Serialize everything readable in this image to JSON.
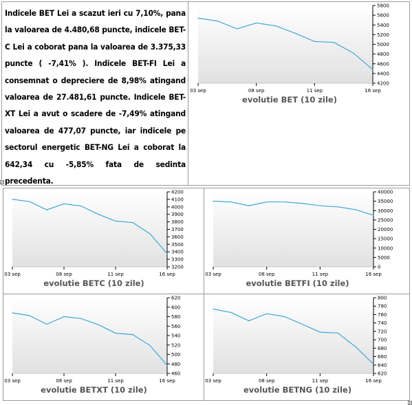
{
  "article": {
    "text": "Indicele BET Lei a scazut ieri cu 7,10%, pana la valoarea de 4.480,68 puncte, indicele BET-C Lei a coborat pana la valoarea de 3.375,33 puncte ( -7,41% ). Indicele BET-FI Lei a consemnat o depreciere de 8,98% atingand valoarea de 27.481,61 puncte. Indicele BET-XT Lei a avut o scadere de -7,49% atingand valoarea de 477,07 puncte, iar indicele pe sectorul energetic BET-NG Lei a coborat la 642,34 cu -5,85% fata de sedinta precedenta."
  },
  "colors": {
    "line": "#3fa6d8",
    "plot_top": "#ffffff",
    "plot_bottom": "#e1e1e1",
    "axis": "#000000",
    "grid": "#f2f2f2"
  },
  "chart_data": [
    {
      "id": "bet",
      "type": "line",
      "title": "evolutie BET (10 zile)",
      "x_ticks": [
        "03 sep",
        "08 sep",
        "11 sep",
        "16 sep"
      ],
      "y_ticks": [
        4200,
        4400,
        4600,
        4800,
        5000,
        5200,
        5400,
        5600,
        5800
      ],
      "ylim": [
        4200,
        5800
      ],
      "values": [
        5540,
        5480,
        5320,
        5440,
        5380,
        5230,
        5060,
        5040,
        4820,
        4480
      ],
      "grid": false,
      "y_axis": "right"
    },
    {
      "id": "betc",
      "type": "line",
      "title": "evolutie BETC (10 zile)",
      "x_ticks": [
        "03 sep",
        "08 sep",
        "11 sep",
        "16 sep"
      ],
      "y_ticks": [
        3200,
        3300,
        3400,
        3500,
        3600,
        3700,
        3800,
        3900,
        4000,
        4100,
        4200
      ],
      "ylim": [
        3200,
        4200
      ],
      "values": [
        4100,
        4070,
        3960,
        4040,
        4010,
        3900,
        3810,
        3790,
        3640,
        3375
      ],
      "grid": false,
      "y_axis": "right"
    },
    {
      "id": "betfi",
      "type": "line",
      "title": "evolutie BETFI (10 zile)",
      "x_ticks": [
        "03 sep",
        "08 sep",
        "11 sep",
        "16 sep"
      ],
      "y_ticks": [
        0,
        5000,
        10000,
        15000,
        20000,
        25000,
        30000,
        35000,
        40000
      ],
      "ylim": [
        0,
        40000
      ],
      "values": [
        35000,
        34600,
        32600,
        34600,
        34600,
        33800,
        32600,
        32000,
        30500,
        27480
      ],
      "grid": false,
      "y_axis": "right"
    },
    {
      "id": "betxt",
      "type": "line",
      "title": "evolutie BETXT (10 zile)",
      "x_ticks": [
        "03 sep",
        "08 sep",
        "11 sep",
        "16 sep"
      ],
      "y_ticks": [
        460,
        480,
        500,
        520,
        540,
        560,
        580,
        600,
        620
      ],
      "ylim": [
        460,
        620
      ],
      "values": [
        588,
        582,
        564,
        580,
        576,
        563,
        545,
        542,
        519,
        477
      ],
      "grid": false,
      "y_axis": "right"
    },
    {
      "id": "betng",
      "type": "line",
      "title": "evolutie BETNG (10 zile)",
      "x_ticks": [
        "03 sep",
        "08 sep",
        "11 sep",
        "16 sep"
      ],
      "y_ticks": [
        620,
        640,
        660,
        680,
        700,
        720,
        740,
        760,
        780,
        800
      ],
      "ylim": [
        620,
        800
      ],
      "values": [
        773,
        765,
        745,
        762,
        755,
        737,
        718,
        716,
        683,
        642
      ],
      "grid": false,
      "y_axis": "right"
    }
  ]
}
